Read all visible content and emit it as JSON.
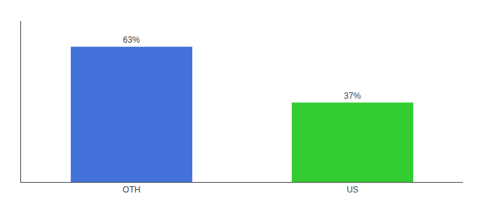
{
  "chart_data": {
    "type": "bar",
    "categories": [
      "OTH",
      "US"
    ],
    "values": [
      63,
      37
    ],
    "value_labels": [
      "63%",
      "37%"
    ],
    "colors": [
      "#4472db",
      "#33cc33"
    ],
    "ylim": [
      0,
      75
    ],
    "data_labels": true,
    "tick_labels": "x",
    "grid": false
  }
}
